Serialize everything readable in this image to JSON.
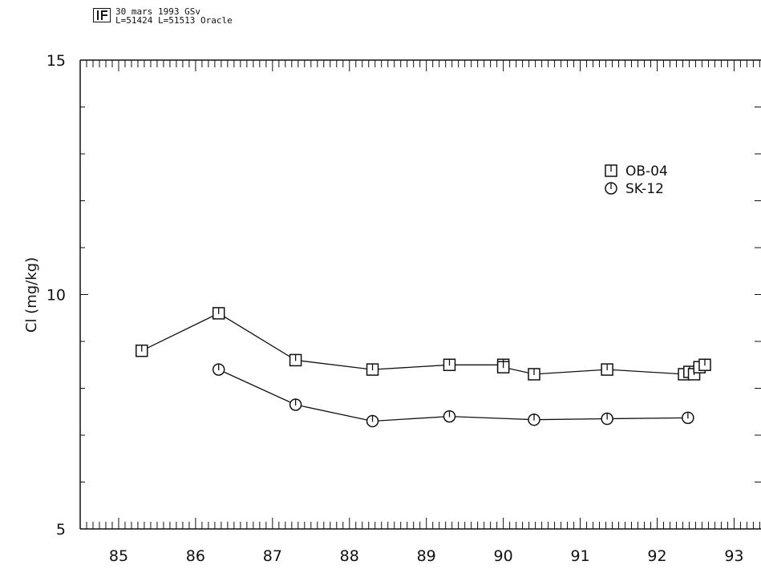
{
  "header": {
    "line1": "30 mars 1993 GSv",
    "line2": "L=51424 L=51513 Oracle"
  },
  "chart_data": {
    "type": "line",
    "xlabel": "",
    "ylabel": "Cl  (mg/kg)",
    "xlim": [
      84.5,
      93.35
    ],
    "ylim": [
      5,
      15
    ],
    "x_ticks": [
      "85",
      "86",
      "87",
      "88",
      "89",
      "90",
      "91",
      "92",
      "93"
    ],
    "y_ticks": [
      "5",
      "10",
      "15"
    ],
    "legend_position": "upper-right",
    "series": [
      {
        "name": "OB-04",
        "marker": "square",
        "x": [
          85.3,
          86.3,
          87.3,
          88.3,
          89.3,
          90.0,
          90.0,
          90.4,
          91.35,
          92.35,
          92.42,
          92.48,
          92.55,
          92.62
        ],
        "y": [
          8.8,
          9.6,
          8.6,
          8.4,
          8.5,
          8.5,
          8.45,
          8.3,
          8.4,
          8.3,
          8.35,
          8.3,
          8.45,
          8.5
        ]
      },
      {
        "name": "SK-12",
        "marker": "circle",
        "x": [
          86.3,
          87.3,
          88.3,
          89.3,
          90.4,
          91.35,
          92.4
        ],
        "y": [
          8.4,
          7.65,
          7.3,
          7.4,
          7.33,
          7.35,
          7.37
        ]
      }
    ]
  }
}
